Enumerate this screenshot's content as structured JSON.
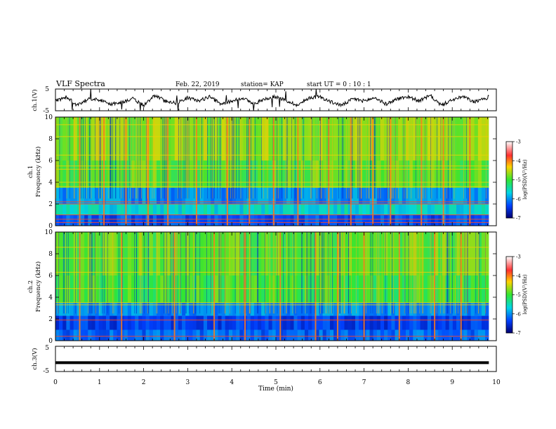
{
  "header": {
    "title": "VLF Spectra",
    "date": "Feb. 22, 2019",
    "station": "station= KAP",
    "start_ut": "start  UT =  0 : 10 : 1"
  },
  "chart_data": [
    {
      "type": "line",
      "name": "ch1-waveform",
      "ylabel": "ch.1(V)",
      "ylim": [
        -5,
        5
      ],
      "yticks": [
        "5",
        "-5"
      ],
      "xlim": [
        0,
        9.83
      ],
      "x": [
        0,
        0.25,
        0.5,
        0.75,
        1,
        1.25,
        1.5,
        1.75,
        2,
        2.25,
        2.5,
        2.75,
        3,
        3.25,
        3.5,
        3.75,
        4,
        4.25,
        4.5,
        4.75,
        5,
        5.25,
        5.5,
        5.75,
        6,
        6.25,
        6.5,
        6.75,
        7,
        7.25,
        7.5,
        7.75,
        8,
        8.25,
        8.5,
        8.75,
        9,
        9.25,
        9.5,
        9.75,
        9.83
      ],
      "y": [
        -0.5,
        1.5,
        -2.5,
        0.5,
        0.0,
        -2.0,
        -1.0,
        0.5,
        -2.5,
        2.0,
        -0.5,
        -1.5,
        1.0,
        -0.5,
        1.5,
        -2.0,
        -0.5,
        1.0,
        -2.0,
        0.5,
        1.5,
        -0.5,
        -2.5,
        1.0,
        1.5,
        -1.0,
        -2.5,
        0.5,
        -0.5,
        1.0,
        -2.0,
        0.5,
        1.5,
        -0.5,
        2.0,
        -2.5,
        0.0,
        1.5,
        -1.0,
        0.5,
        1.5
      ]
    },
    {
      "type": "heatmap",
      "name": "ch1-spectrogram",
      "ylabel_line1": "ch.1",
      "ylabel_line2": "Frequency  (kHz)",
      "ylim": [
        0,
        10
      ],
      "yticks": [
        "0",
        "2",
        "4",
        "6",
        "8",
        "10"
      ],
      "colorbar": {
        "label": "log(PSD)(V²/Hz)",
        "range": [
          -7,
          -3
        ],
        "ticks": [
          "-3",
          "-4",
          "-5",
          "-6",
          "-7"
        ]
      },
      "freq_bands_khz": [
        {
          "from": 0,
          "to": 1,
          "level": -6.3
        },
        {
          "from": 1,
          "to": 2,
          "level": -5.6
        },
        {
          "from": 2,
          "to": 3.5,
          "level": -6.0
        },
        {
          "from": 3.5,
          "to": 6,
          "level": -4.9
        },
        {
          "from": 6,
          "to": 10,
          "level": -4.7
        }
      ],
      "horizontal_lines_khz": [
        0.3,
        0.6,
        1.0,
        2.0,
        2.2,
        3.6,
        4.0,
        5.2,
        5.5,
        6.5,
        8.2,
        9.3
      ],
      "vertical_events_min": [
        0.55,
        1.1,
        1.6,
        2.1,
        2.55,
        3.2,
        3.9,
        4.4,
        4.95,
        5.5,
        6.2,
        6.7,
        7.2,
        7.6,
        8.3,
        8.8,
        9.4
      ]
    },
    {
      "type": "heatmap",
      "name": "ch2-spectrogram",
      "ylabel_line1": "ch.2",
      "ylabel_line2": "Frequency  (kHz)",
      "ylim": [
        0,
        10
      ],
      "yticks": [
        "0",
        "2",
        "4",
        "6",
        "8",
        "10"
      ],
      "colorbar": {
        "label": "log(PSD)(V²/Hz)",
        "range": [
          -7,
          -3
        ],
        "ticks": [
          "-3",
          "-4",
          "-5",
          "-6",
          "-7"
        ]
      },
      "freq_bands_khz": [
        {
          "from": 0,
          "to": 1,
          "level": -6.2
        },
        {
          "from": 1,
          "to": 2.3,
          "level": -6.4
        },
        {
          "from": 2.3,
          "to": 3.5,
          "level": -6.0
        },
        {
          "from": 3.5,
          "to": 6,
          "level": -5.0
        },
        {
          "from": 6,
          "to": 10,
          "level": -4.9
        }
      ],
      "horizontal_lines_khz": [
        0.4,
        1.9,
        3.3,
        3.5,
        4.8,
        6.3,
        7.6,
        8.6
      ],
      "vertical_events_min": [
        0.55,
        1.5,
        2.7,
        3.6,
        4.3,
        5.1,
        5.9,
        6.4,
        7.0,
        7.8,
        8.6,
        9.2
      ]
    },
    {
      "type": "line",
      "name": "ch3-waveform",
      "ylabel": "ch.3(V)",
      "ylim": [
        -5,
        5
      ],
      "yticks": [
        "5",
        "-5"
      ],
      "xlim": [
        0,
        9.83
      ],
      "x": [
        0,
        9.83
      ],
      "y": [
        -1.5,
        -1.5
      ]
    }
  ],
  "xaxis": {
    "label": "Time  (min)",
    "range": [
      0,
      10
    ],
    "ticks": [
      "0",
      "1",
      "2",
      "3",
      "4",
      "5",
      "6",
      "7",
      "8",
      "9",
      "10"
    ]
  }
}
